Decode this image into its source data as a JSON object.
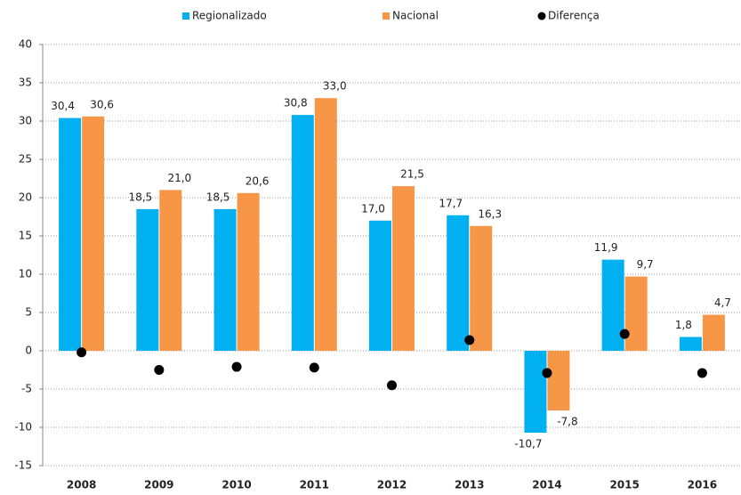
{
  "chart_data": {
    "type": "bar",
    "categories": [
      "2008",
      "2009",
      "2010",
      "2011",
      "2012",
      "2013",
      "2014",
      "2015",
      "2016"
    ],
    "series": [
      {
        "name": "Regionalizado",
        "color": "#00b0f0",
        "values": [
          30.4,
          18.5,
          18.5,
          30.8,
          17.0,
          17.7,
          -10.7,
          11.9,
          1.8
        ],
        "value_labels": [
          "30,4",
          "18,5",
          "18,5",
          "30,8",
          "17,0",
          "17,7",
          "-10,7",
          "11,9",
          "1,8"
        ]
      },
      {
        "name": "Nacional",
        "color": "#f79646",
        "values": [
          30.6,
          21.0,
          20.6,
          33.0,
          21.5,
          16.3,
          -7.8,
          9.7,
          4.7
        ],
        "value_labels": [
          "30,6",
          "21,0",
          "20,6",
          "33,0",
          "21,5",
          "16,3",
          "-7,8",
          "9,7",
          "4,7"
        ]
      },
      {
        "name": "Diferença",
        "color": "#000000",
        "type": "scatter",
        "values": [
          -0.2,
          -2.5,
          -2.1,
          -2.2,
          -4.5,
          1.4,
          -2.9,
          2.2,
          -2.9
        ]
      }
    ],
    "ylim": [
      -15,
      40
    ],
    "yticks": [
      -15,
      -10,
      -5,
      0,
      5,
      10,
      15,
      20,
      25,
      30,
      35,
      40
    ],
    "grid": true
  }
}
